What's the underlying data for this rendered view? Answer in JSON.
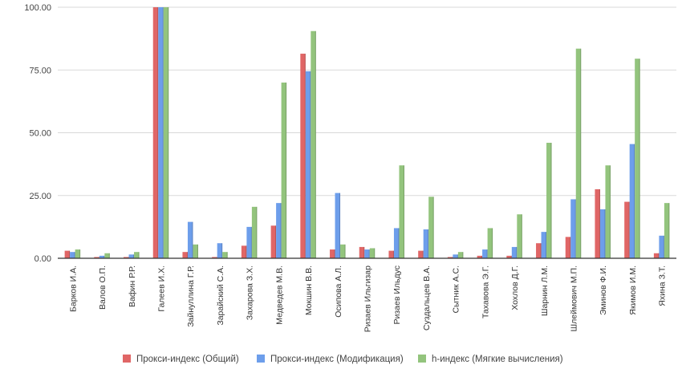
{
  "chart_data": {
    "type": "bar",
    "categories": [
      "Барков И.А.",
      "Валов О.П.",
      "Вафин Р.Р.",
      "Галеев И.Х.",
      "Зайнуллина Г.Р.",
      "Зарайский С.А.",
      "Захарова З.Х.",
      "Медведев М.В.",
      "Мокшин В.В.",
      "Осипова А.Л.",
      "Ризаев Ильгизар",
      "Ризаев Ильдус",
      "Суздальцев В.А.",
      "Сытник А.С.",
      "Тахавова Э.Г.",
      "Хохлов Д.Г.",
      "Шарнин Л.М.",
      "Шлеймович М.П.",
      "Эминов Ф.И.",
      "Якимов И.М.",
      "Яхина З.Т."
    ],
    "series": [
      {
        "name": "Прокси-индекс (Общий)",
        "color": "#e06666",
        "values": [
          3,
          0.5,
          0.5,
          100,
          2.5,
          0.5,
          5,
          13,
          81.5,
          3.5,
          4.5,
          3,
          3,
          0.5,
          1,
          1,
          6,
          8.5,
          27.5,
          22.5,
          2
        ]
      },
      {
        "name": "Прокси-индекс (Модификация)",
        "color": "#6d9eeb",
        "values": [
          2.5,
          1,
          1.5,
          100,
          14.5,
          6,
          12.5,
          22,
          74.5,
          26,
          3.5,
          12,
          11.5,
          1.5,
          3.5,
          4.5,
          10.5,
          23.5,
          19.5,
          45.5,
          9
        ]
      },
      {
        "name": "h-индекс (Мягкие вычисления)",
        "color": "#93c47d",
        "values": [
          3.5,
          2,
          2.5,
          100,
          5.5,
          2.5,
          20.5,
          70,
          90.5,
          5.5,
          4,
          37,
          24.5,
          2.5,
          12,
          17.5,
          46,
          83.5,
          37,
          79.5,
          22
        ]
      }
    ],
    "yticks": [
      "0.00",
      "25.00",
      "50.00",
      "75.00",
      "100.00"
    ],
    "ylim": [
      0,
      100
    ],
    "grid": true,
    "legend_position": "bottom"
  }
}
